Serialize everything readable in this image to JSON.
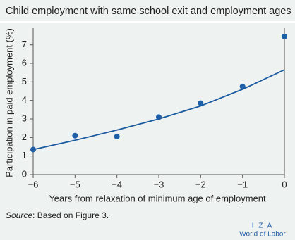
{
  "chart_data": {
    "type": "scatter",
    "title": "Child employment with same school exit and employment ages",
    "xlabel": "Years from relaxation of minimum age of employment",
    "ylabel": "Participation in paid employment (%)",
    "x": [
      -6,
      -5,
      -4,
      -3,
      -2,
      -1,
      0
    ],
    "series": [
      {
        "mode": "markers",
        "color": "#1f5fa8",
        "values": [
          1.35,
          2.1,
          2.05,
          3.1,
          3.85,
          4.75,
          7.45
        ]
      },
      {
        "mode": "line",
        "color": "#1a5aa0",
        "values": [
          1.35,
          1.85,
          2.4,
          3.0,
          3.7,
          4.6,
          5.65
        ]
      }
    ],
    "xlim": [
      -6,
      0
    ],
    "xticks": [
      {
        "value": -6,
        "label": "−6"
      },
      {
        "value": -5,
        "label": "−5"
      },
      {
        "value": -4,
        "label": "−4"
      },
      {
        "value": -3,
        "label": "−3"
      },
      {
        "value": -2,
        "label": "−2"
      },
      {
        "value": -1,
        "label": "−1"
      },
      0
    ],
    "ylim": [
      0,
      7.9
    ],
    "yticks": [
      0,
      1,
      2,
      3,
      4,
      5,
      6,
      7
    ],
    "source": {
      "label": "Source",
      "text": ": Based on Figure 3."
    },
    "logo": [
      "I Z A",
      "World of Labor"
    ]
  }
}
